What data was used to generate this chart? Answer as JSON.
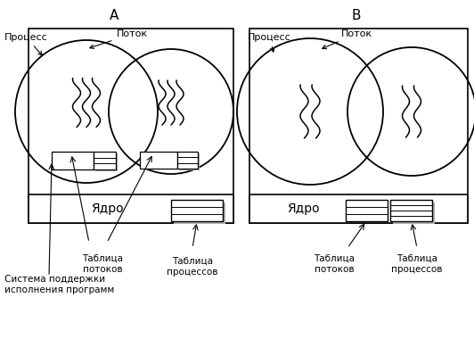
{
  "title_A": "А",
  "title_B": "В",
  "label_process": "Процесс",
  "label_thread": "Поток",
  "label_kernel": "Ядро",
  "label_thread_table": "Таблица\nпотоков",
  "label_process_table": "Таблица\nпроцессов",
  "label_runtime": "Система поддержки\nисполнения программ",
  "bg_color": "#ffffff",
  "line_color": "#000000",
  "gray_color": "#b0b0b0"
}
